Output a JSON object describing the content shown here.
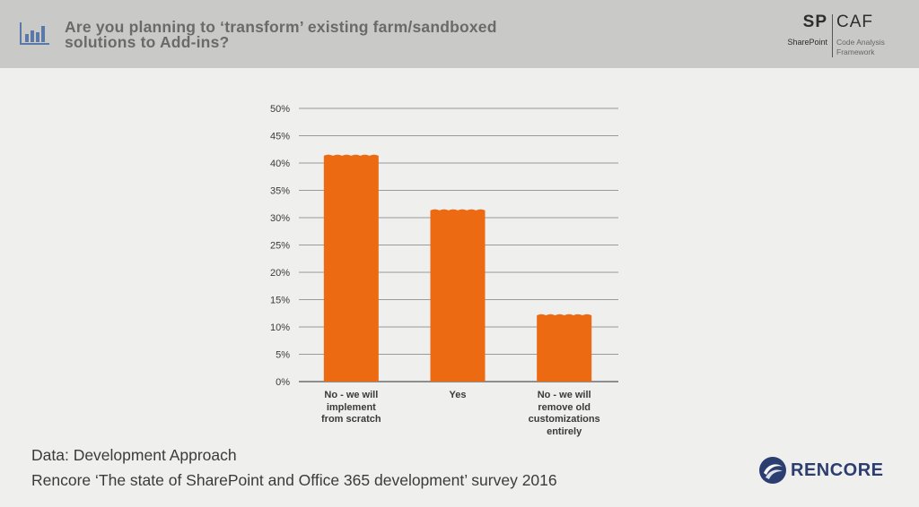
{
  "header": {
    "title": "Are you planning to ‘transform’ existing farm/sandboxed solutions to Add-ins?",
    "icon": "bar-chart-icon"
  },
  "brand": {
    "sp": "SP",
    "sharepoint": "SharePoint",
    "caf": "CAF",
    "caf_full": "Code Analysis Framework"
  },
  "chart_data": {
    "type": "bar",
    "categories": [
      "No - we will\nimplement\nfrom scratch",
      "Yes",
      "No - we will\nremove old\ncustomizations\nentirely"
    ],
    "values": [
      41.5,
      31.5,
      12.3
    ],
    "ylim": [
      0,
      50
    ],
    "y_ticks": [
      "0%",
      "5%",
      "10%",
      "15%",
      "20%",
      "25%",
      "30%",
      "35%",
      "40%",
      "45%",
      "50%"
    ],
    "grid": true,
    "bar_color": "#ec6a12",
    "title": "",
    "xlabel": "",
    "ylabel": ""
  },
  "footer": {
    "line1": "Data: Development Approach",
    "line2": "Rencore ‘The state of SharePoint and Office 365 development’ survey 2016"
  },
  "logo": {
    "text": "RENCORE",
    "color": "#2c3e70"
  }
}
